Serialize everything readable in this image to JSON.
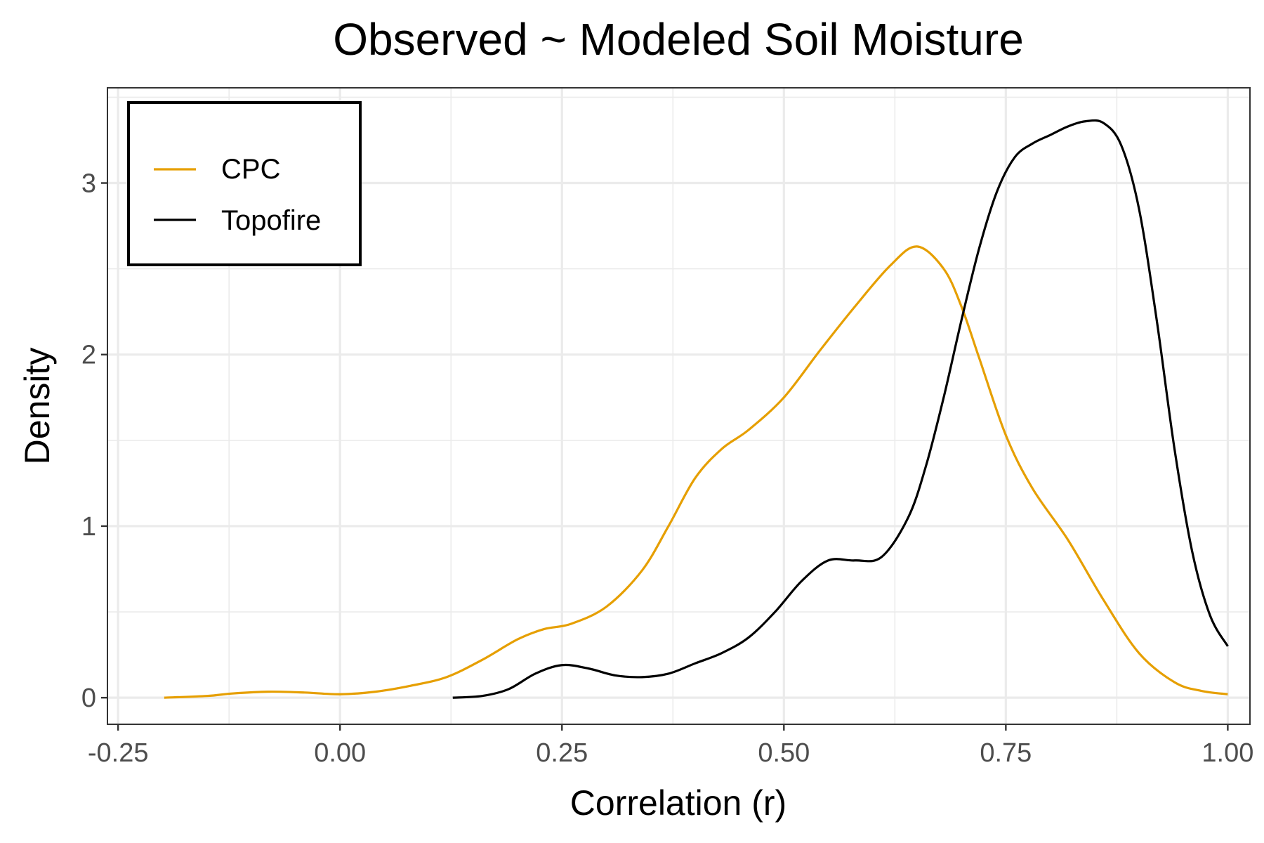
{
  "chart_data": {
    "type": "line",
    "title": "Observed ~ Modeled Soil Moisture",
    "xlabel": "Correlation (r)",
    "ylabel": "Density",
    "xlim": [
      -0.262,
      1.025
    ],
    "ylim": [
      -0.155,
      3.555
    ],
    "x_ticks": [
      -0.25,
      0,
      0.25,
      0.5,
      0.75,
      1
    ],
    "x_tick_labels": [
      "-0.25",
      "0.00",
      "0.25",
      "0.50",
      "0.75",
      "1.00"
    ],
    "y_ticks": [
      0,
      1,
      2,
      3
    ],
    "y_tick_labels": [
      "0",
      "1",
      "2",
      "3"
    ],
    "grid": true,
    "legend_position": "top-left",
    "series": [
      {
        "name": "CPC",
        "color": "#E69F00",
        "x": [
          -0.198,
          -0.15,
          -0.12,
          -0.08,
          -0.04,
          0.0,
          0.04,
          0.08,
          0.12,
          0.16,
          0.2,
          0.23,
          0.26,
          0.3,
          0.34,
          0.37,
          0.4,
          0.43,
          0.46,
          0.5,
          0.54,
          0.58,
          0.62,
          0.65,
          0.68,
          0.7,
          0.72,
          0.75,
          0.78,
          0.82,
          0.86,
          0.9,
          0.94,
          0.97,
          1.0
        ],
        "values": [
          0.0,
          0.01,
          0.025,
          0.035,
          0.03,
          0.02,
          0.035,
          0.07,
          0.12,
          0.22,
          0.34,
          0.4,
          0.43,
          0.53,
          0.74,
          1.0,
          1.28,
          1.45,
          1.56,
          1.75,
          2.02,
          2.28,
          2.52,
          2.63,
          2.5,
          2.28,
          1.98,
          1.53,
          1.22,
          0.92,
          0.57,
          0.26,
          0.09,
          0.04,
          0.02
        ]
      },
      {
        "name": "Topofire",
        "color": "#000000",
        "x": [
          0.127,
          0.16,
          0.19,
          0.22,
          0.25,
          0.28,
          0.31,
          0.34,
          0.37,
          0.4,
          0.43,
          0.46,
          0.49,
          0.52,
          0.55,
          0.58,
          0.61,
          0.64,
          0.66,
          0.68,
          0.7,
          0.72,
          0.74,
          0.76,
          0.78,
          0.8,
          0.82,
          0.84,
          0.86,
          0.88,
          0.9,
          0.92,
          0.94,
          0.96,
          0.98,
          1.0
        ],
        "values": [
          0.0,
          0.01,
          0.05,
          0.14,
          0.19,
          0.17,
          0.13,
          0.12,
          0.14,
          0.2,
          0.26,
          0.35,
          0.5,
          0.68,
          0.8,
          0.8,
          0.82,
          1.05,
          1.35,
          1.75,
          2.2,
          2.62,
          2.95,
          3.15,
          3.23,
          3.28,
          3.33,
          3.36,
          3.35,
          3.22,
          2.85,
          2.2,
          1.45,
          0.85,
          0.48,
          0.3
        ]
      }
    ]
  }
}
